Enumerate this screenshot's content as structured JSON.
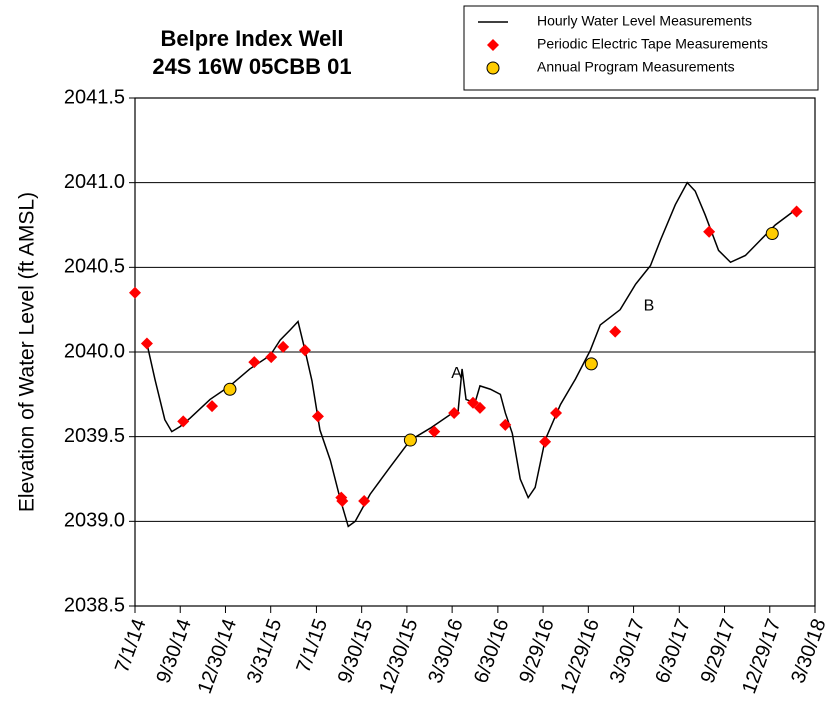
{
  "chart_data": {
    "type": "line",
    "title": [
      "Belpre Index Well",
      "24S 16W 05CBB 01"
    ],
    "y_label": "Elevation of Water Level (ft AMSL)",
    "xlim": [
      "2014-07-01",
      "2018-03-30"
    ],
    "xticks": [
      {
        "value": "2014-07-01",
        "label": "7/1/14"
      },
      {
        "value": "2014-09-30",
        "label": "9/30/14"
      },
      {
        "value": "2014-12-30",
        "label": "12/30/14"
      },
      {
        "value": "2015-03-31",
        "label": "3/31/15"
      },
      {
        "value": "2015-07-01",
        "label": "7/1/15"
      },
      {
        "value": "2015-09-30",
        "label": "9/30/15"
      },
      {
        "value": "2015-12-30",
        "label": "12/30/15"
      },
      {
        "value": "2016-03-30",
        "label": "3/30/16"
      },
      {
        "value": "2016-06-30",
        "label": "6/30/16"
      },
      {
        "value": "2016-09-29",
        "label": "9/29/16"
      },
      {
        "value": "2016-12-29",
        "label": "12/29/16"
      },
      {
        "value": "2017-03-30",
        "label": "3/30/17"
      },
      {
        "value": "2017-06-30",
        "label": "6/30/17"
      },
      {
        "value": "2017-09-29",
        "label": "9/29/17"
      },
      {
        "value": "2017-12-29",
        "label": "12/29/17"
      },
      {
        "value": "2018-03-30",
        "label": "3/30/18"
      }
    ],
    "ylim": [
      2038.5,
      2041.5
    ],
    "yticks": [
      2038.5,
      {
        "value": 2039,
        "label": "2039.0"
      },
      2039.5,
      {
        "value": 2040,
        "label": "2040.0"
      },
      2040.5,
      {
        "value": 2041,
        "label": "2041.0"
      },
      2041.5
    ],
    "grid": true,
    "legend": "top-right",
    "series": [
      {
        "name": "Hourly Water Level Measurements",
        "color": "#000000",
        "marker": "none",
        "x": [
          "2014-07-25",
          "2014-08-10",
          "2014-08-30",
          "2014-09-13",
          "2014-09-30",
          "2014-10-20",
          "2014-11-29",
          "2015-01-08",
          "2015-02-17",
          "2015-03-30",
          "2015-04-19",
          "2015-05-09",
          "2015-05-25",
          "2015-06-08",
          "2015-06-22",
          "2015-07-08",
          "2015-07-29",
          "2015-08-18",
          "2015-09-03",
          "2015-09-17",
          "2015-10-17",
          "2015-11-26",
          "2016-01-06",
          "2016-02-15",
          "2016-03-26",
          "2016-04-11",
          "2016-04-19",
          "2016-04-27",
          "2016-05-15",
          "2016-05-25",
          "2016-06-15",
          "2016-07-05",
          "2016-07-15",
          "2016-07-29",
          "2016-08-14",
          "2016-08-30",
          "2016-09-13",
          "2016-10-03",
          "2016-11-03",
          "2016-12-03",
          "2017-01-02",
          "2017-01-22",
          "2017-03-03",
          "2017-04-03",
          "2017-05-03",
          "2017-05-23",
          "2017-06-22",
          "2017-07-16",
          "2017-08-01",
          "2017-08-21",
          "2017-09-17",
          "2017-10-11",
          "2017-11-10",
          "2017-12-10",
          "2018-01-09",
          "2018-02-19"
        ],
        "values": [
          2040.05,
          2039.84,
          2039.6,
          2039.53,
          2039.56,
          2039.61,
          2039.72,
          2039.8,
          2039.9,
          2039.98,
          2040.07,
          2040.13,
          2040.18,
          2040.01,
          2039.83,
          2039.54,
          2039.36,
          2039.13,
          2038.97,
          2039.0,
          2039.16,
          2039.32,
          2039.48,
          2039.55,
          2039.63,
          2039.65,
          2039.9,
          2039.72,
          2039.7,
          2039.8,
          2039.78,
          2039.75,
          2039.64,
          2039.52,
          2039.25,
          2039.14,
          2039.2,
          2039.48,
          2039.69,
          2039.84,
          2040.01,
          2040.16,
          2040.25,
          2040.4,
          2040.51,
          2040.66,
          2040.87,
          2041.0,
          2040.95,
          2040.81,
          2040.6,
          2040.53,
          2040.57,
          2040.66,
          2040.75,
          2040.84
        ]
      },
      {
        "name": "Periodic Electric Tape Measurements",
        "color": "#ff0000",
        "marker": "diamond",
        "x": [
          "2014-07-01",
          "2014-07-25",
          "2014-10-06",
          "2014-12-03",
          "2015-02-26",
          "2015-04-01",
          "2015-04-25",
          "2015-06-08",
          "2015-07-04",
          "2015-08-20",
          "2015-08-22",
          "2015-10-05",
          "2016-02-23",
          "2016-04-03",
          "2016-05-11",
          "2016-05-25",
          "2016-07-15",
          "2016-10-03",
          "2016-10-25",
          "2017-02-21",
          "2017-08-29",
          "2018-02-21"
        ],
        "values": [
          2040.35,
          2040.05,
          2039.59,
          2039.68,
          2039.94,
          2039.97,
          2040.03,
          2040.01,
          2039.62,
          2039.14,
          2039.12,
          2039.12,
          2039.53,
          2039.64,
          2039.7,
          2039.67,
          2039.57,
          2039.47,
          2039.64,
          2040.12,
          2040.71,
          2040.83
        ]
      },
      {
        "name": "Annual Program Measurements",
        "color": "#ffcc00",
        "marker": "circle",
        "x": [
          "2015-01-08",
          "2016-01-06",
          "2017-01-04",
          "2018-01-03"
        ],
        "values": [
          2039.78,
          2039.48,
          2039.93,
          2040.7
        ]
      }
    ],
    "annotations": [
      {
        "text": "A",
        "x": "2016-04-08",
        "y": 2039.87
      },
      {
        "text": "B",
        "x": "2017-04-30",
        "y": 2040.27
      }
    ]
  }
}
